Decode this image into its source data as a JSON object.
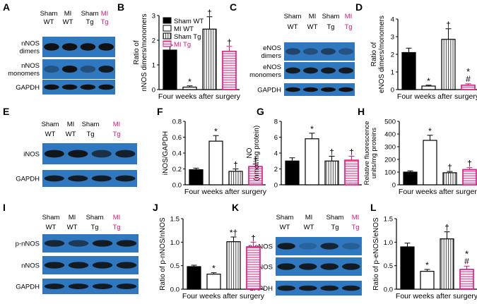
{
  "panel_letters": [
    "A",
    "B",
    "C",
    "D",
    "E",
    "F",
    "G",
    "H",
    "I",
    "J",
    "K",
    "L"
  ],
  "colors": {
    "black": "#000000",
    "white": "#ffffff",
    "hatch_gray": "#555555",
    "magenta": "#e0157a",
    "blot_bg": "#2f78c0",
    "band": "#111111"
  },
  "blots": [
    {
      "id": "A",
      "groups": [
        "Sham WT",
        "MI WT",
        "Sham Tg",
        "MI Tg"
      ],
      "rows": [
        "nNOS dimers",
        "nNOS monomers",
        "GAPDH"
      ]
    },
    {
      "id": "C",
      "groups": [
        "Sham WT",
        "MI WT",
        "Sham Tg",
        "MI Tg"
      ],
      "rows": [
        "eNOS dimers",
        "eNOS monomers",
        "GAPDH"
      ]
    },
    {
      "id": "E",
      "groups": [
        "Sham WT",
        "MI WT",
        "Sham Tg",
        "MI Tg"
      ],
      "rows": [
        "iNOS",
        "GAPDH"
      ]
    },
    {
      "id": "I",
      "groups": [
        "Sham WT",
        "MI WT",
        "Sham Tg",
        "MI Tg"
      ],
      "rows": [
        "p-nNOS",
        "nNOS",
        "GAPDH"
      ]
    },
    {
      "id": "K",
      "groups": [
        "Sham WT",
        "MI WT",
        "Sham Tg",
        "MI Tg"
      ],
      "rows": [
        "p-eNOS",
        "eNOS",
        "GAPDH"
      ]
    }
  ],
  "chart_data": [
    {
      "id": "B",
      "type": "bar",
      "categories": [
        "Sham WT",
        "MI WT",
        "Sham Tg",
        "MI Tg"
      ],
      "values": [
        1.6,
        0.1,
        2.45,
        1.55
      ],
      "errors": [
        0.2,
        0.05,
        0.5,
        0.2
      ],
      "annotations": [
        "",
        "*",
        "†",
        "†"
      ],
      "xlabel": "Four weeks after surgery",
      "ylabel": "Ratio of nNOS dimers/monomers",
      "ylim": [
        0,
        3
      ],
      "yticks": [
        "0",
        "1",
        "2",
        "3"
      ],
      "legend": [
        "Sham WT",
        "MI WT",
        "Sham Tg",
        "MI Tg"
      ]
    },
    {
      "id": "D",
      "type": "bar",
      "categories": [
        "Sham WT",
        "MI WT",
        "Sham Tg",
        "MI Tg"
      ],
      "values": [
        2.1,
        0.2,
        2.85,
        0.25
      ],
      "errors": [
        0.25,
        0.05,
        0.6,
        0.08
      ],
      "annotations": [
        "",
        "*",
        "†",
        "#"
      ],
      "xlabel": "Four weeks after surgery",
      "ylabel": "Ratio of eNOS dimers/monomers",
      "ylim": [
        0,
        4
      ],
      "yticks": [
        "0",
        "1",
        "2",
        "3",
        "4"
      ]
    },
    {
      "id": "F",
      "type": "bar",
      "categories": [
        "Sham WT",
        "MI WT",
        "Sham Tg",
        "MI Tg"
      ],
      "values": [
        0.19,
        0.55,
        0.17,
        0.23
      ],
      "errors": [
        0.02,
        0.07,
        0.03,
        0.03
      ],
      "annotations": [
        "",
        "*",
        "†",
        "†"
      ],
      "xlabel": "Four weeks after surgery",
      "ylabel": "iNOS/GAPDH",
      "ylim": [
        0,
        0.8
      ],
      "yticks": [
        "0.0",
        "0.2",
        "0.4",
        "0.6",
        "0.8"
      ]
    },
    {
      "id": "G",
      "type": "bar",
      "categories": [
        "Sham WT",
        "MI WT",
        "Sham Tg",
        "MI Tg"
      ],
      "values": [
        3.0,
        5.8,
        3.0,
        3.1
      ],
      "errors": [
        0.4,
        0.7,
        0.6,
        0.5
      ],
      "annotations": [
        "",
        "*",
        "†",
        "†"
      ],
      "xlabel": "",
      "ylabel": "NOx (nmol/mg protein)",
      "ylim": [
        0,
        8
      ],
      "yticks": [
        "0",
        "2",
        "4",
        "6",
        "8"
      ]
    },
    {
      "id": "H",
      "type": "bar",
      "categories": [
        "Sham WT",
        "MI WT",
        "Sham Tg",
        "MI Tg"
      ],
      "values": [
        100,
        350,
        95,
        120
      ],
      "errors": [
        10,
        40,
        10,
        15
      ],
      "annotations": [
        "",
        "*",
        "†",
        "†"
      ],
      "xlabel": "Four weeks after surgery",
      "ylabel": "Relative fluorescence units/mg proteins",
      "ylim": [
        0,
        500
      ],
      "yticks": [
        "0",
        "100",
        "200",
        "300",
        "400",
        "500"
      ]
    },
    {
      "id": "J",
      "type": "bar",
      "categories": [
        "Sham WT",
        "MI WT",
        "Sham Tg",
        "MI Tg"
      ],
      "values": [
        0.48,
        0.32,
        1.01,
        0.9
      ],
      "errors": [
        0.03,
        0.03,
        0.1,
        0.1
      ],
      "annotations": [
        "",
        "*",
        "*†",
        "†"
      ],
      "xlabel": "Four weeks after surgery",
      "ylabel": "Ratio of p-nNOS/nNOS",
      "ylim": [
        0,
        1.5
      ],
      "yticks": [
        "0.0",
        "0.5",
        "1.0",
        "1.5"
      ]
    },
    {
      "id": "L",
      "type": "bar",
      "categories": [
        "Sham WT",
        "MI WT",
        "Sham Tg",
        "MI Tg"
      ],
      "values": [
        0.9,
        0.38,
        1.07,
        0.42
      ],
      "errors": [
        0.08,
        0.04,
        0.15,
        0.07
      ],
      "annotations": [
        "",
        "*",
        "†",
        "#"
      ],
      "xlabel": "Four weeks after surgery",
      "ylabel": "Ratio of p-eNOS/eNOS",
      "ylim": [
        0,
        1.5
      ],
      "yticks": [
        "0.0",
        "0.5",
        "1.0",
        "1.5"
      ]
    }
  ]
}
